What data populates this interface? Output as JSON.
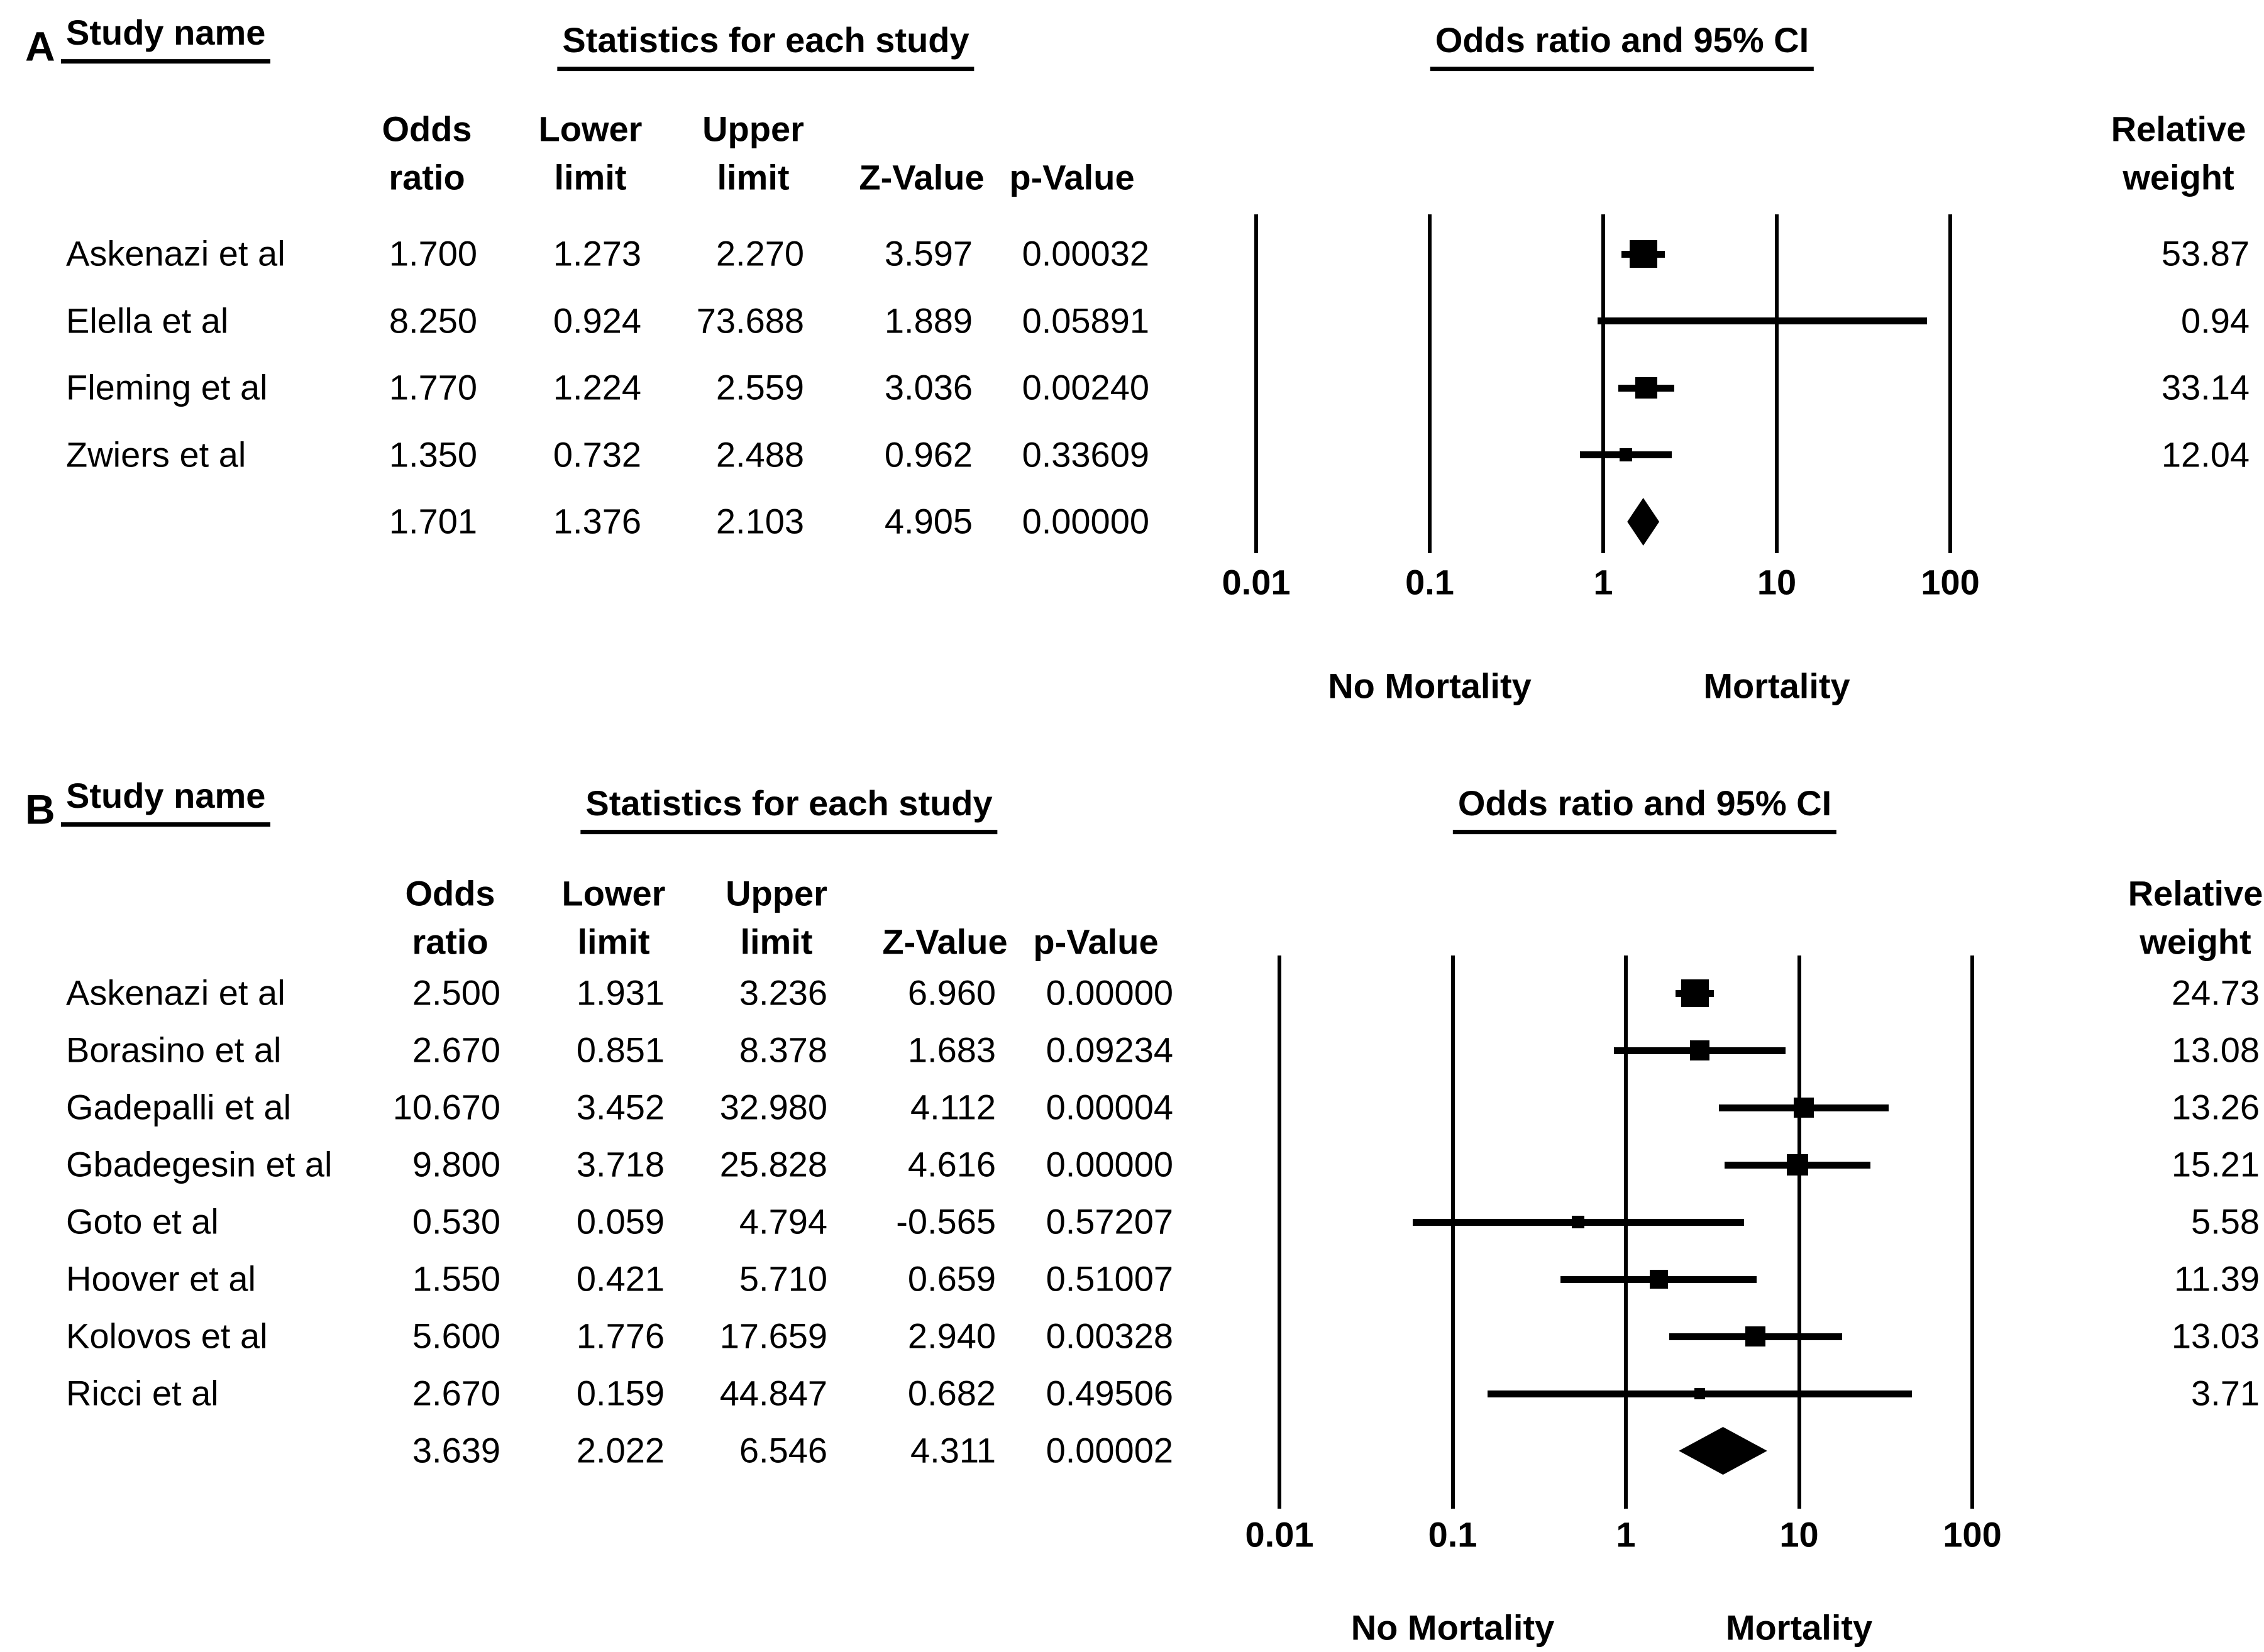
{
  "figure": {
    "background": "#ffffff",
    "text_color": "#000000"
  },
  "chart_data": [
    {
      "type": "forest",
      "panel_label": "A",
      "titles": {
        "study": "Study name",
        "stats": "Statistics for each study",
        "plot": "Odds ratio and 95% CI"
      },
      "column_headers": {
        "or_line1": "Odds",
        "or_line2": "ratio",
        "lower_line1": "Lower",
        "lower_line2": "limit",
        "upper_line1": "Upper",
        "upper_line2": "limit",
        "z": "Z-Value",
        "p": "p-Value",
        "weight_line1": "Relative",
        "weight_line2": "weight"
      },
      "axis": {
        "scale": "log10",
        "ticks": [
          "0.01",
          "0.1",
          "1",
          "10",
          "100"
        ],
        "left_label": "No Mortality",
        "right_label": "Mortality"
      },
      "rows": [
        {
          "study": "Askenazi et al",
          "odds_ratio": "1.700",
          "lower_limit": "1.273",
          "upper_limit": "2.270",
          "z_value": "3.597",
          "p_value": "0.00032",
          "relative_weight": "53.87",
          "summary": false
        },
        {
          "study": "Elella et al",
          "odds_ratio": "8.250",
          "lower_limit": "0.924",
          "upper_limit": "73.688",
          "z_value": "1.889",
          "p_value": "0.05891",
          "relative_weight": "0.94",
          "summary": false
        },
        {
          "study": "Fleming et al",
          "odds_ratio": "1.770",
          "lower_limit": "1.224",
          "upper_limit": "2.559",
          "z_value": "3.036",
          "p_value": "0.00240",
          "relative_weight": "33.14",
          "summary": false
        },
        {
          "study": "Zwiers et al",
          "odds_ratio": "1.350",
          "lower_limit": "0.732",
          "upper_limit": "2.488",
          "z_value": "0.962",
          "p_value": "0.33609",
          "relative_weight": "12.04",
          "summary": false
        },
        {
          "study": "",
          "odds_ratio": "1.701",
          "lower_limit": "1.376",
          "upper_limit": "2.103",
          "z_value": "4.905",
          "p_value": "0.00000",
          "relative_weight": "",
          "summary": true
        }
      ]
    },
    {
      "type": "forest",
      "panel_label": "B",
      "titles": {
        "study": "Study name",
        "stats": "Statistics for each study",
        "plot": "Odds ratio and 95% CI"
      },
      "column_headers": {
        "or_line1": "Odds",
        "or_line2": "ratio",
        "lower_line1": "Lower",
        "lower_line2": "limit",
        "upper_line1": "Upper",
        "upper_line2": "limit",
        "z": "Z-Value",
        "p": "p-Value",
        "weight_line1": "Relative",
        "weight_line2": "weight"
      },
      "axis": {
        "scale": "log10",
        "ticks": [
          "0.01",
          "0.1",
          "1",
          "10",
          "100"
        ],
        "left_label": "No Mortality",
        "right_label": "Mortality"
      },
      "rows": [
        {
          "study": "Askenazi et al",
          "odds_ratio": "2.500",
          "lower_limit": "1.931",
          "upper_limit": "3.236",
          "z_value": "6.960",
          "p_value": "0.00000",
          "relative_weight": "24.73",
          "summary": false
        },
        {
          "study": "Borasino et al",
          "odds_ratio": "2.670",
          "lower_limit": "0.851",
          "upper_limit": "8.378",
          "z_value": "1.683",
          "p_value": "0.09234",
          "relative_weight": "13.08",
          "summary": false
        },
        {
          "study": "Gadepalli et al",
          "odds_ratio": "10.670",
          "lower_limit": "3.452",
          "upper_limit": "32.980",
          "z_value": "4.112",
          "p_value": "0.00004",
          "relative_weight": "13.26",
          "summary": false
        },
        {
          "study": "Gbadegesin et al",
          "odds_ratio": "9.800",
          "lower_limit": "3.718",
          "upper_limit": "25.828",
          "z_value": "4.616",
          "p_value": "0.00000",
          "relative_weight": "15.21",
          "summary": false
        },
        {
          "study": "Goto et al",
          "odds_ratio": "0.530",
          "lower_limit": "0.059",
          "upper_limit": "4.794",
          "z_value": "-0.565",
          "p_value": "0.57207",
          "relative_weight": "5.58",
          "summary": false
        },
        {
          "study": "Hoover et al",
          "odds_ratio": "1.550",
          "lower_limit": "0.421",
          "upper_limit": "5.710",
          "z_value": "0.659",
          "p_value": "0.51007",
          "relative_weight": "11.39",
          "summary": false
        },
        {
          "study": "Kolovos et al",
          "odds_ratio": "5.600",
          "lower_limit": "1.776",
          "upper_limit": "17.659",
          "z_value": "2.940",
          "p_value": "0.00328",
          "relative_weight": "13.03",
          "summary": false
        },
        {
          "study": "Ricci et al",
          "odds_ratio": "2.670",
          "lower_limit": "0.159",
          "upper_limit": "44.847",
          "z_value": "0.682",
          "p_value": "0.49506",
          "relative_weight": "3.71",
          "summary": false
        },
        {
          "study": "",
          "odds_ratio": "3.639",
          "lower_limit": "2.022",
          "upper_limit": "6.546",
          "z_value": "4.311",
          "p_value": "0.00002",
          "relative_weight": "",
          "summary": true
        }
      ]
    }
  ]
}
